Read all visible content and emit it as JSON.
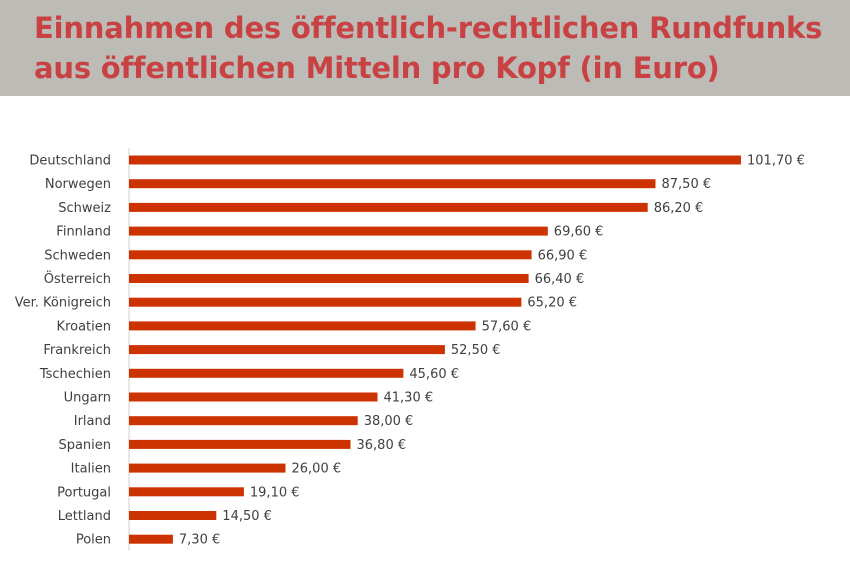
{
  "header": {
    "title": "Einnahmen des öffentlich-rechtlichen Rundfunks aus öffentlichen Mitteln pro Kopf (in Euro)"
  },
  "colors": {
    "title": "#c94243",
    "bar": "#cc3300",
    "band": "#bdbbb6"
  },
  "chart_data": {
    "type": "bar",
    "orientation": "horizontal",
    "categories": [
      "Deutschland",
      "Norwegen",
      "Schweiz",
      "Finnland",
      "Schweden",
      "Österreich",
      "Ver. Königreich",
      "Kroatien",
      "Frankreich",
      "Tschechien",
      "Ungarn",
      "Irland",
      "Spanien",
      "Italien",
      "Portugal",
      "Lettland",
      "Polen"
    ],
    "values": [
      101.7,
      87.5,
      86.2,
      69.6,
      66.9,
      66.4,
      65.2,
      57.6,
      52.5,
      45.6,
      41.3,
      38.0,
      36.8,
      26.0,
      19.1,
      14.5,
      7.3
    ],
    "value_labels": [
      "101,70 €",
      "87,50 €",
      "86,20 €",
      "69,60 €",
      "66,90 €",
      "66,40 €",
      "65,20 €",
      "57,60 €",
      "52,50 €",
      "45,60 €",
      "41,30 €",
      "38,00 €",
      "36,80 €",
      "26,00 €",
      "19,10 €",
      "14,50 €",
      "7,30 €"
    ],
    "title": "Einnahmen des öffentlich-rechtlichen Rundfunks aus öffentlichen Mitteln pro Kopf (in Euro)",
    "xlabel": "",
    "ylabel": "",
    "xlim": [
      0,
      101.7
    ],
    "grid": false,
    "legend": "none"
  }
}
